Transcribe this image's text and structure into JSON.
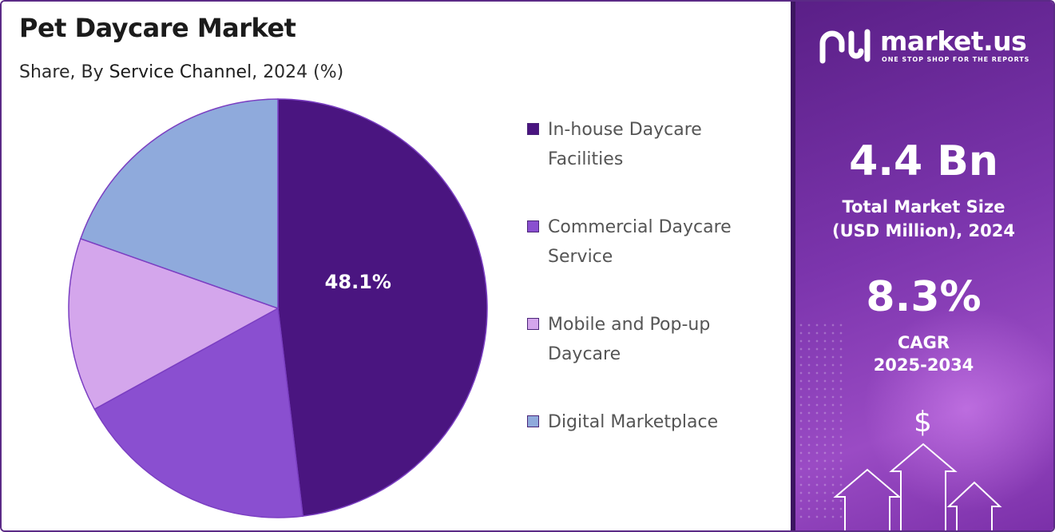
{
  "header": {
    "title": "Pet Daycare Market",
    "subtitle_prefix": "Share, By ",
    "subtitle_emphasis": "Service Channel",
    "subtitle_suffix": ", 2024 (%)"
  },
  "chart_data": {
    "type": "pie",
    "title": "Pet Daycare Market",
    "subtitle": "Share, By Service Channel, 2024 (%)",
    "categories": [
      "In-house Daycare Facilities",
      "Commercial Daycare Service",
      "Mobile and Pop-up Daycare",
      "Digital Marketplace"
    ],
    "values": [
      48.1,
      18.9,
      13.4,
      19.6
    ],
    "labeled_values": [
      "48.1%",
      null,
      null,
      null
    ],
    "colors": [
      "#4a1580",
      "#8a4fd0",
      "#d4a6ec",
      "#8faadc"
    ],
    "legend_placement": "right"
  },
  "legend": {
    "items": [
      {
        "line1": "In-house Daycare",
        "line2": "Facilities",
        "color": "#4a1580"
      },
      {
        "line1": "Commercial Daycare",
        "line2": "Service",
        "color": "#8a4fd0"
      },
      {
        "line1": "Mobile and Pop-up",
        "line2": "Daycare",
        "color": "#d4a6ec"
      },
      {
        "line1": "Digital Marketplace",
        "line2": "",
        "color": "#8faadc"
      }
    ]
  },
  "brand": {
    "name": "market.us",
    "tagline": "ONE STOP SHOP FOR THE REPORTS",
    "icon": "market-us-logo-icon"
  },
  "stats": {
    "market_size_value": "4.4 Bn",
    "market_size_label_line1": "Total Market Size",
    "market_size_label_line2": "(USD Million), 2024",
    "cagr_value": "8.3%",
    "cagr_label_line1": "CAGR",
    "cagr_label_line2": "2025-2034"
  },
  "decor": {
    "dollar_symbol": "$",
    "icons": [
      "dollar-icon",
      "up-arrow-icon"
    ]
  }
}
